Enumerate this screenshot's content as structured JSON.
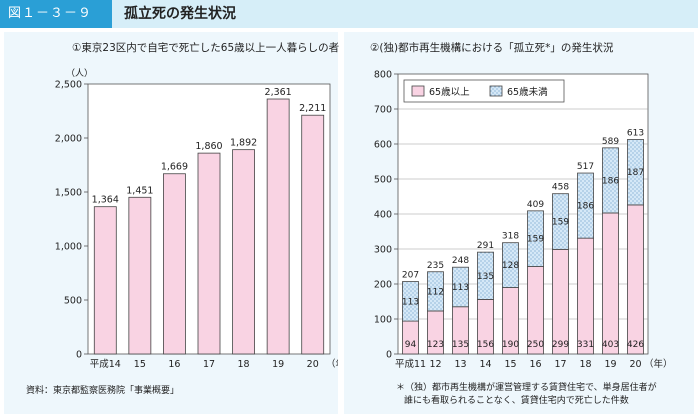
{
  "header": {
    "badge": "図１－３－９",
    "title": "孤立死の発生状況"
  },
  "chart_data": [
    {
      "type": "bar",
      "title": "①東京23区内で自宅で死亡した65歳以上一人暮らしの者",
      "ylabel": "（人）",
      "xunit": "（年）",
      "categories": [
        "平成14",
        "15",
        "16",
        "17",
        "18",
        "19",
        "20"
      ],
      "values": [
        1364,
        1451,
        1669,
        1860,
        1892,
        2361,
        2211
      ],
      "value_labels": [
        "1,364",
        "1,451",
        "1,669",
        "1,860",
        "1,892",
        "2,361",
        "2,211"
      ],
      "yticks": [
        0,
        500,
        1000,
        1500,
        2000,
        2500
      ],
      "ytick_labels": [
        "0",
        "500",
        "1,000",
        "1,500",
        "2,000",
        "2,500"
      ],
      "ylim": [
        0,
        2500
      ],
      "color": "#f9d3e3",
      "source": "資料：東京都監察医務院「事業概要」"
    },
    {
      "type": "bar",
      "stacked": true,
      "title": "②(独)都市再生機構における「孤立死*」の発生状況",
      "xunit": "（年）",
      "categories": [
        "平成11",
        "12",
        "13",
        "14",
        "15",
        "16",
        "17",
        "18",
        "19",
        "20"
      ],
      "series": [
        {
          "name": "65歳以上",
          "values": [
            94,
            123,
            135,
            156,
            190,
            250,
            299,
            331,
            403,
            426
          ],
          "color": "#f9d3e3"
        },
        {
          "name": "65歳未満",
          "values": [
            113,
            112,
            113,
            135,
            128,
            159,
            159,
            186,
            186,
            187
          ],
          "color": "#d5e8f7"
        }
      ],
      "totals": [
        207,
        235,
        248,
        291,
        318,
        409,
        458,
        517,
        589,
        613
      ],
      "yticks": [
        0,
        100,
        200,
        300,
        400,
        500,
        600,
        700,
        800
      ],
      "ylim": [
        0,
        800
      ],
      "legend_position": "top-left",
      "footnote_line1": "＊（独）都市再生機構が運営管理する賃貸住宅で、単身居住者が",
      "footnote_line2": "誰にも看取られることなく、賃貸住宅内で死亡した件数"
    }
  ]
}
